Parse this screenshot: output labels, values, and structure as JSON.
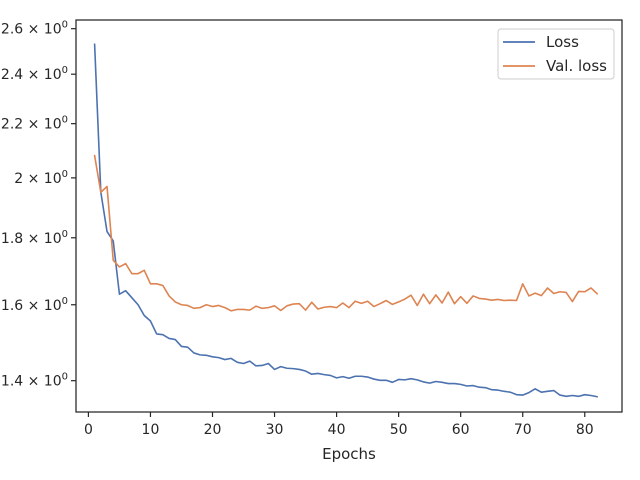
{
  "chart_data": {
    "type": "line",
    "xlabel": "Epochs",
    "ylabel": "",
    "xlim": [
      -2.0,
      86.0
    ],
    "ylim": [
      1.325,
      2.64
    ],
    "y_scale": "log",
    "grid": false,
    "legend_position": "top-right",
    "x_ticks": [
      0,
      10,
      20,
      30,
      40,
      50,
      60,
      70,
      80
    ],
    "x_tick_labels": [
      "0",
      "10",
      "20",
      "30",
      "40",
      "50",
      "60",
      "70",
      "80"
    ],
    "y_ticks": [
      1.4,
      1.6,
      1.8,
      2.0,
      2.2,
      2.4,
      2.6
    ],
    "y_tick_labels": [
      {
        "mantissa": "1.4",
        "base": "10",
        "exp": "0"
      },
      {
        "mantissa": "1.6",
        "base": "10",
        "exp": "0"
      },
      {
        "mantissa": "1.8",
        "base": "10",
        "exp": "0"
      },
      {
        "mantissa": "2",
        "base": "10",
        "exp": "0"
      },
      {
        "mantissa": "2.2",
        "base": "10",
        "exp": "0"
      },
      {
        "mantissa": "2.4",
        "base": "10",
        "exp": "0"
      },
      {
        "mantissa": "2.6",
        "base": "10",
        "exp": "0"
      }
    ],
    "x": [
      1,
      2,
      3,
      4,
      5,
      6,
      7,
      8,
      9,
      10,
      11,
      12,
      13,
      14,
      15,
      16,
      17,
      18,
      19,
      20,
      21,
      22,
      23,
      24,
      25,
      26,
      27,
      28,
      29,
      30,
      31,
      32,
      33,
      34,
      35,
      36,
      37,
      38,
      39,
      40,
      41,
      42,
      43,
      44,
      45,
      46,
      47,
      48,
      49,
      50,
      51,
      52,
      53,
      54,
      55,
      56,
      57,
      58,
      59,
      60,
      61,
      62,
      63,
      64,
      65,
      66,
      67,
      68,
      69,
      70,
      71,
      72,
      73,
      74,
      75,
      76,
      77,
      78,
      79,
      80,
      81,
      82
    ],
    "series": [
      {
        "name": "Loss",
        "color": "#4c72b0",
        "values": [
          2.53,
          1.95,
          1.82,
          1.79,
          1.63,
          1.64,
          1.62,
          1.6,
          1.57,
          1.555,
          1.52,
          1.518,
          1.508,
          1.505,
          1.487,
          1.485,
          1.47,
          1.465,
          1.464,
          1.46,
          1.458,
          1.453,
          1.456,
          1.446,
          1.443,
          1.449,
          1.437,
          1.438,
          1.443,
          1.428,
          1.435,
          1.431,
          1.43,
          1.428,
          1.424,
          1.416,
          1.418,
          1.415,
          1.413,
          1.407,
          1.41,
          1.406,
          1.411,
          1.411,
          1.409,
          1.404,
          1.401,
          1.401,
          1.396,
          1.403,
          1.402,
          1.405,
          1.402,
          1.397,
          1.394,
          1.398,
          1.396,
          1.393,
          1.393,
          1.391,
          1.387,
          1.388,
          1.384,
          1.383,
          1.378,
          1.377,
          1.374,
          1.372,
          1.366,
          1.365,
          1.371,
          1.38,
          1.372,
          1.374,
          1.376,
          1.365,
          1.362,
          1.364,
          1.362,
          1.366,
          1.364,
          1.361
        ]
      },
      {
        "name": "Val. loss",
        "color": "#dd8452",
        "values": [
          2.08,
          1.95,
          1.97,
          1.73,
          1.71,
          1.72,
          1.69,
          1.69,
          1.7,
          1.66,
          1.66,
          1.655,
          1.625,
          1.608,
          1.6,
          1.598,
          1.59,
          1.592,
          1.6,
          1.595,
          1.598,
          1.592,
          1.583,
          1.587,
          1.587,
          1.585,
          1.596,
          1.59,
          1.592,
          1.597,
          1.584,
          1.597,
          1.602,
          1.603,
          1.585,
          1.607,
          1.588,
          1.593,
          1.595,
          1.592,
          1.605,
          1.592,
          1.61,
          1.604,
          1.61,
          1.595,
          1.603,
          1.612,
          1.601,
          1.608,
          1.616,
          1.627,
          1.598,
          1.63,
          1.603,
          1.628,
          1.605,
          1.636,
          1.603,
          1.623,
          1.604,
          1.625,
          1.618,
          1.616,
          1.613,
          1.615,
          1.612,
          1.613,
          1.612,
          1.66,
          1.625,
          1.633,
          1.626,
          1.648,
          1.632,
          1.637,
          1.635,
          1.609,
          1.638,
          1.637,
          1.648,
          1.631
        ]
      }
    ]
  }
}
